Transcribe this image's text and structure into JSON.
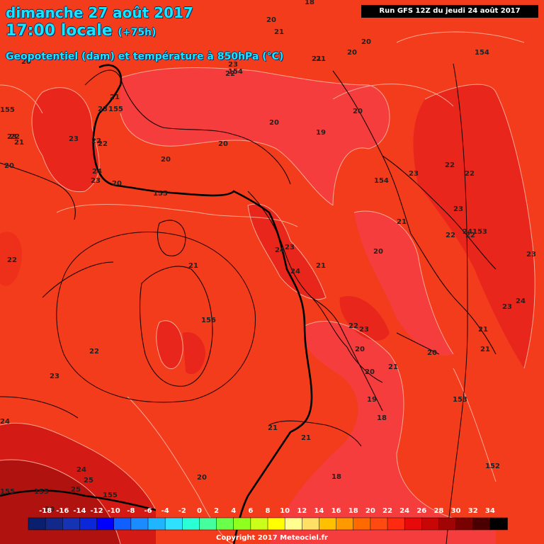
{
  "header": {
    "date": "dimanche 27 août 2017",
    "time": "17:00 locale",
    "offset": "(+75h)",
    "parameter": "Geopotentiel (dam) et température à 850hPa (°C)"
  },
  "run": "Run GFS 12Z du jeudi 24 août 2017",
  "copyright": "Copyright 2017 Meteociel.fr",
  "color_scale": {
    "ticks": [
      "-18",
      "-16",
      "-14",
      "-12",
      "-10",
      "-8",
      "-6",
      "-4",
      "-2",
      "0",
      "2",
      "4",
      "6",
      "8",
      "10",
      "12",
      "14",
      "16",
      "18",
      "20",
      "22",
      "24",
      "26",
      "28",
      "30",
      "32",
      "34"
    ],
    "colors": [
      "#0a1f6e",
      "#12298a",
      "#1633b3",
      "#0b28d8",
      "#0000ff",
      "#1060ff",
      "#1a8cff",
      "#1fb5ff",
      "#30e0ff",
      "#2affd6",
      "#45ff9e",
      "#6aff4a",
      "#8fff20",
      "#c9ff1a",
      "#ffff00",
      "#ffff90",
      "#ffe066",
      "#ffc000",
      "#ff9900",
      "#ff6a00",
      "#ff4a10",
      "#ff2a10",
      "#e80a0a",
      "#c80606",
      "#a00404",
      "#780202",
      "#4a0000",
      "#000000"
    ]
  },
  "temperature_labels": [
    "18",
    "20",
    "21",
    "20",
    "20",
    "21",
    "23",
    "154",
    "22",
    "155",
    "21",
    "23",
    "155",
    "22",
    "21",
    "23",
    "22",
    "20",
    "23",
    "22",
    "24",
    "20",
    "23",
    "20",
    "20",
    "21",
    "20",
    "19",
    "154",
    "20",
    "23",
    "22",
    "22",
    "155",
    "154",
    "21",
    "20",
    "22",
    "22",
    "24",
    "23",
    "23",
    "24",
    "24",
    "21",
    "22",
    "21",
    "153",
    "20",
    "23",
    "24",
    "23",
    "156",
    "22",
    "20",
    "21",
    "21",
    "20",
    "22",
    "23",
    "21",
    "23",
    "20",
    "19",
    "18",
    "21",
    "21",
    "153",
    "18",
    "152",
    "24",
    "24",
    "25",
    "25",
    "155",
    "155",
    "155",
    "20",
    "20"
  ],
  "geopotential_labels": [
    "155",
    "154",
    "155",
    "155",
    "154",
    "153",
    "156",
    "154",
    "153",
    "152",
    "155",
    "155",
    "155"
  ]
}
